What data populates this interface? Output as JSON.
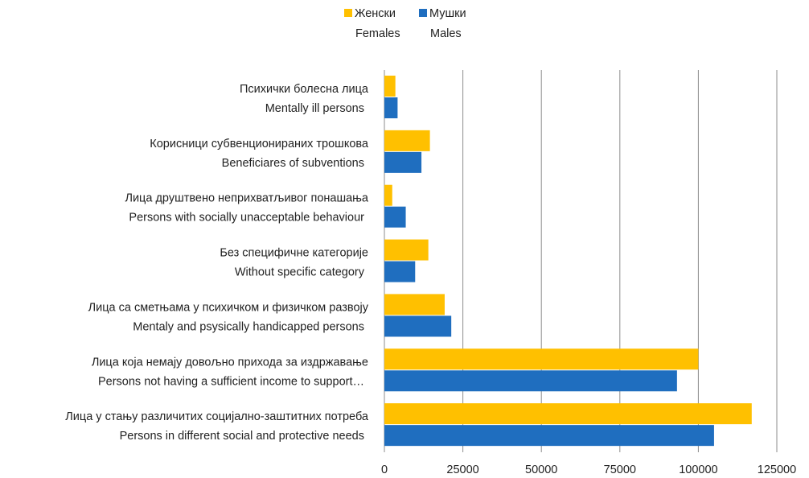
{
  "chart_data": {
    "type": "bar",
    "orientation": "horizontal",
    "categories": [
      [
        "Психички болесна лица",
        "Mentally ill persons"
      ],
      [
        "Корисници субвенционираних трошкова",
        "Beneficiares of subventions"
      ],
      [
        "Лица друштвено неприхватљивог понашања",
        "Persons with socially unacceptable behaviour"
      ],
      [
        "Без специфичне категорије",
        "Without specific category"
      ],
      [
        "Лица са сметњама у психичком и физичком развоју",
        "Mentaly and psysically handicapped persons"
      ],
      [
        "Лица која немају довољно прихода за издржавање",
        "Persons not having a sufficient income to support…"
      ],
      [
        "Лица у стању различитих социјално-заштитних потреба",
        "Persons in different social and protective needs"
      ]
    ],
    "series": [
      {
        "name": [
          "Женски",
          "Females"
        ],
        "color": "#FFC000",
        "values": [
          3500,
          14500,
          2500,
          14000,
          19200,
          100000,
          117000
        ]
      },
      {
        "name": [
          "Мушки",
          "Males"
        ],
        "color": "#1F6EBF",
        "values": [
          4200,
          11800,
          6800,
          9800,
          21300,
          93200,
          105000
        ]
      }
    ],
    "xlim": [
      0,
      125000
    ],
    "xticks": [
      0,
      25000,
      50000,
      75000,
      100000,
      125000
    ],
    "grid": true,
    "legend_position": "top",
    "title": "",
    "xlabel": "",
    "ylabel": ""
  }
}
